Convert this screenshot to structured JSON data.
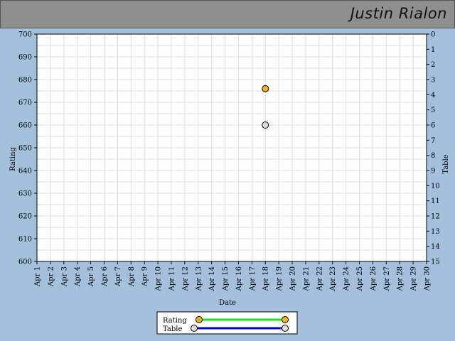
{
  "header": {
    "player_name": "Justin Rialon"
  },
  "chart_data": {
    "type": "scatter",
    "xlabel": "Date",
    "ylabel": "Rating",
    "y2label": "Table",
    "x": [
      "Apr 1",
      "Apr 2",
      "Apr 3",
      "Apr 4",
      "Apr 5",
      "Apr 6",
      "Apr 7",
      "Apr 8",
      "Apr 9",
      "Apr 10",
      "Apr 11",
      "Apr 12",
      "Apr 13",
      "Apr 14",
      "Apr 15",
      "Apr 16",
      "Apr 17",
      "Apr 18",
      "Apr 19",
      "Apr 20",
      "Apr 21",
      "Apr 22",
      "Apr 23",
      "Apr 24",
      "Apr 25",
      "Apr 26",
      "Apr 27",
      "Apr 28",
      "Apr 29",
      "Apr 30"
    ],
    "ylim": [
      600,
      700
    ],
    "yticks": [
      600,
      610,
      620,
      630,
      640,
      650,
      660,
      670,
      680,
      690,
      700
    ],
    "y2lim": [
      0,
      15
    ],
    "y2ticks": [
      0,
      1,
      2,
      3,
      4,
      5,
      6,
      7,
      8,
      9,
      10,
      11,
      12,
      13,
      14,
      15
    ],
    "y2_inverted": true,
    "grid": true,
    "legend_position": "bottom-center",
    "series": [
      {
        "name": "Rating",
        "axis": "left",
        "line_color": "#22dd22",
        "marker_color": "#f5b21c",
        "points": [
          {
            "x": "Apr 18",
            "y": 676
          }
        ]
      },
      {
        "name": "Table",
        "axis": "right",
        "line_color": "#0000cc",
        "marker_color": "#dcdcdc",
        "points": [
          {
            "x": "Apr 18",
            "y": 6
          }
        ]
      }
    ]
  }
}
